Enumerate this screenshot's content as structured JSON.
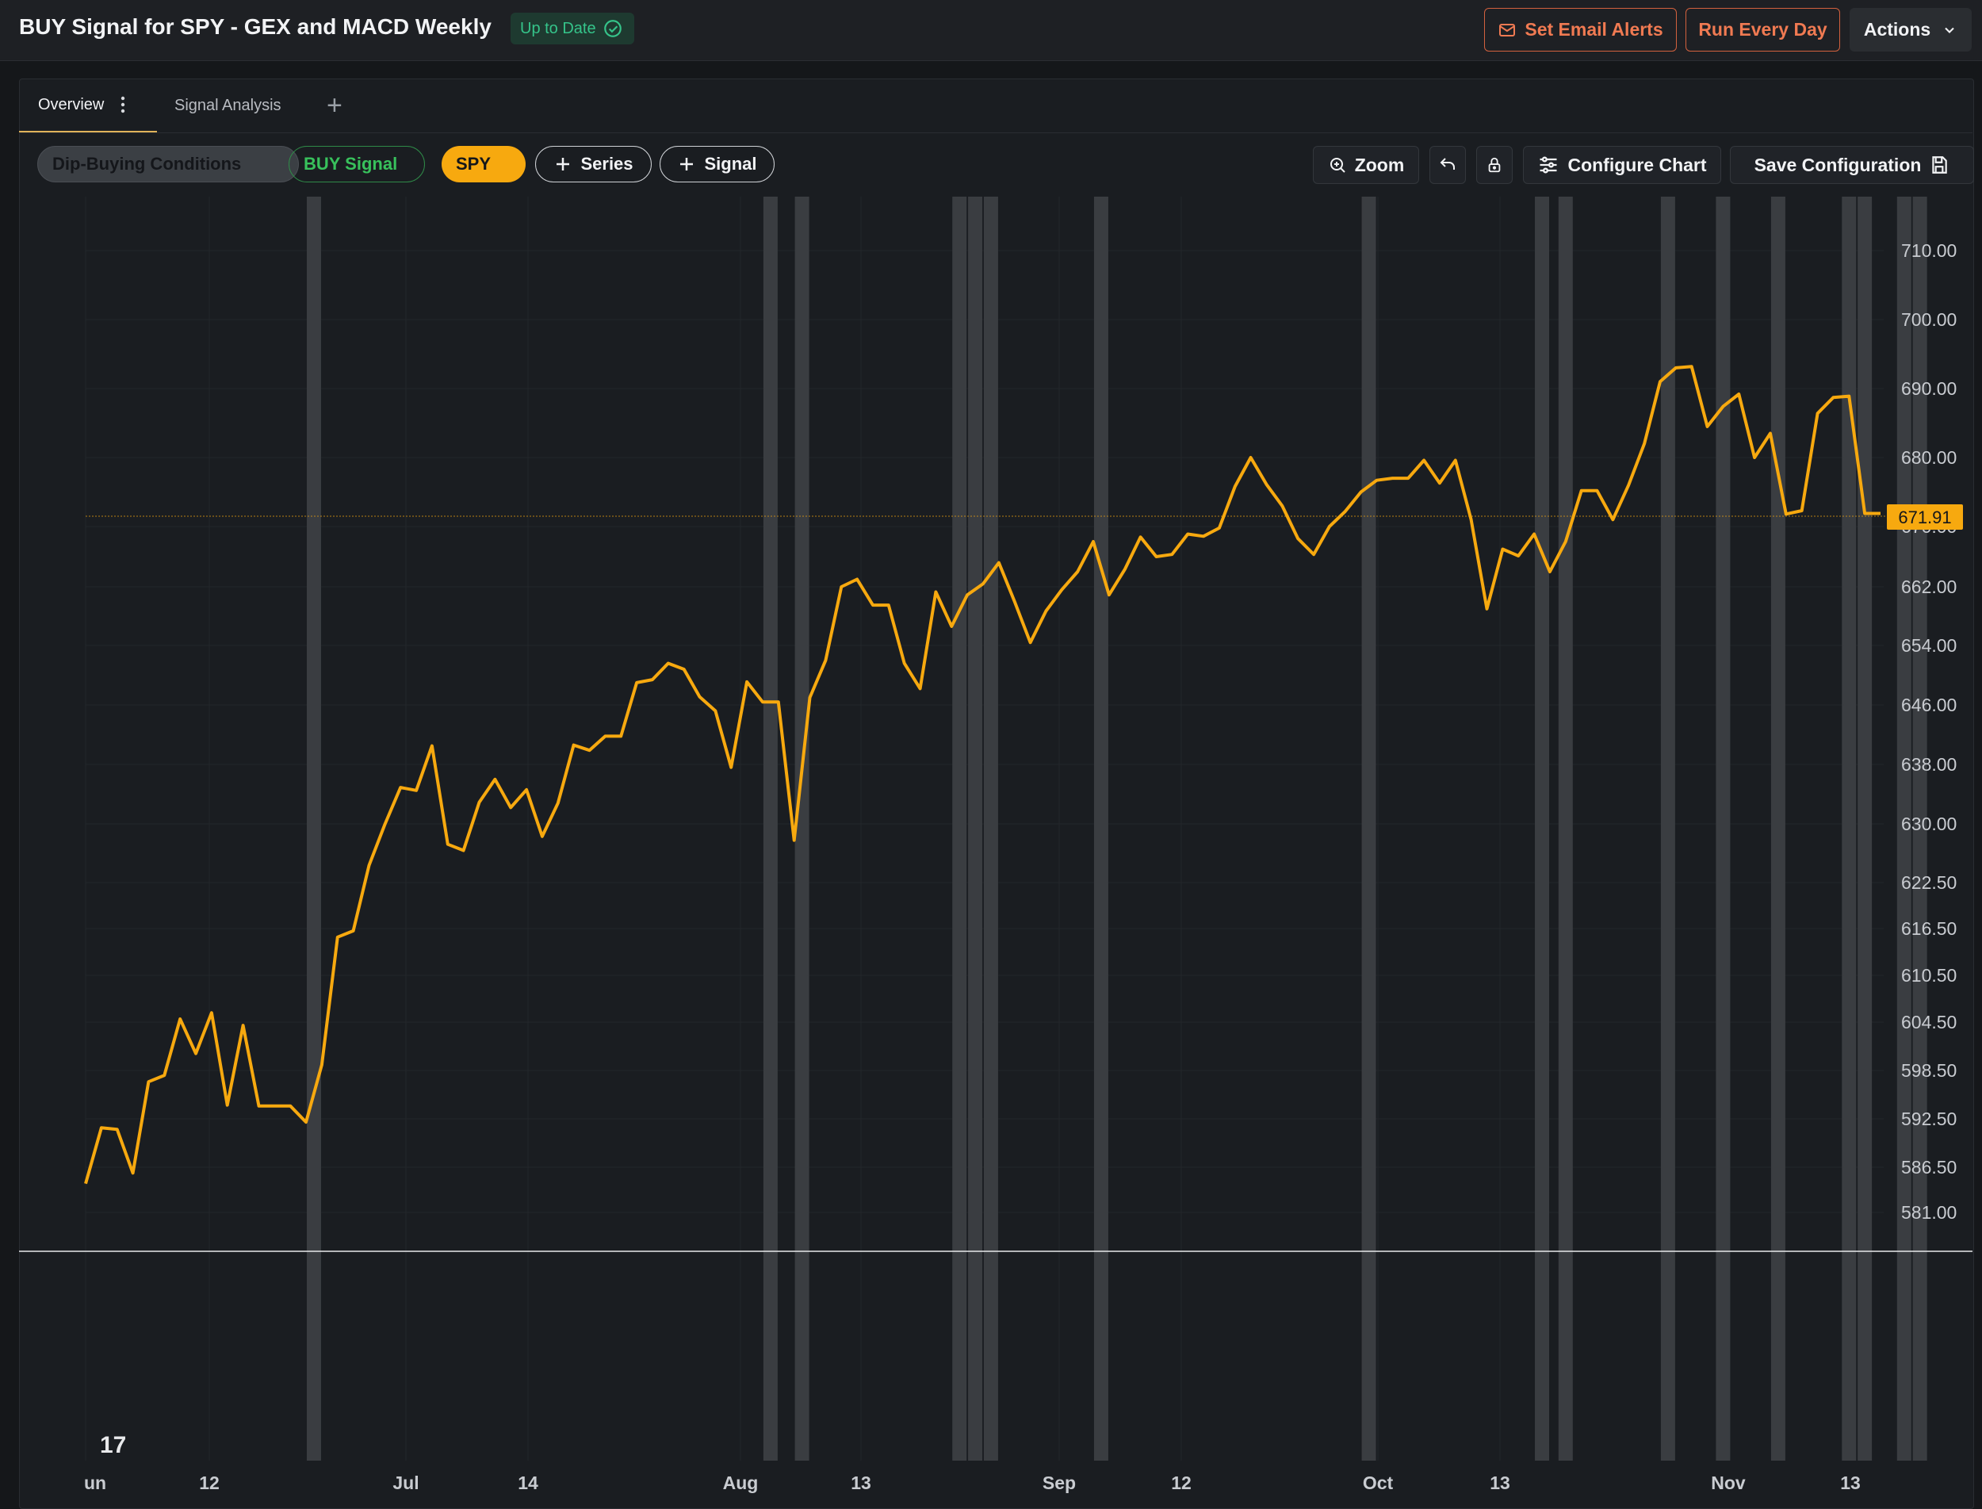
{
  "header": {
    "title": "BUY Signal for SPY - GEX and MACD Weekly",
    "status": "Up to Date",
    "buttons": {
      "email": "Set Email Alerts",
      "run": "Run Every Day",
      "actions": "Actions"
    }
  },
  "tabs": [
    {
      "label": "Overview",
      "active": true
    },
    {
      "label": "Signal Analysis",
      "active": false
    }
  ],
  "toolbar": {
    "pills": {
      "dip": "Dip-Buying Conditions",
      "buy": "BUY Signal",
      "spy": "SPY",
      "series": "Series",
      "signal": "Signal"
    },
    "zoom": "Zoom",
    "configure": "Configure Chart",
    "save": "Save Configuration"
  },
  "colors": {
    "line": "#f7a90f",
    "signal_band": "#3a3d41",
    "buy": "#38c15c",
    "accent": "#f07a52"
  },
  "chart_data": {
    "type": "line",
    "series": [
      {
        "name": "SPY",
        "y": [
          584.5,
          591.4,
          591.2,
          585.8,
          597.1,
          597.9,
          604.9,
          600.6,
          605.7,
          594.2,
          604.1,
          594.1,
          594.1,
          594.1,
          592.1,
          599.2,
          615.4,
          616.2,
          624.7,
          629.9,
          634.9,
          634.5,
          640.5,
          627.4,
          626.6,
          632.9,
          636.0,
          632.2,
          634.6,
          628.4,
          632.8,
          640.6,
          639.9,
          641.8,
          641.8,
          649.0,
          649.4,
          651.6,
          650.8,
          647.1,
          645.2,
          637.6,
          649.1,
          646.4,
          646.4,
          627.9,
          647.0,
          652.0,
          662.0,
          663.0,
          659.5,
          659.5,
          651.6,
          648.2,
          661.3,
          656.6,
          660.9,
          662.4,
          665.2,
          660.0,
          654.4,
          658.7,
          661.6,
          664.0,
          668.0,
          660.9,
          664.3,
          668.6,
          666.0,
          666.3,
          669.0,
          668.7,
          669.8,
          675.8,
          680.0,
          676.1,
          673.0,
          668.4,
          666.3,
          670.0,
          672.2,
          675.0,
          676.7,
          677.0,
          677.0,
          679.6,
          676.3,
          679.6,
          671.0,
          659.0,
          667.0,
          666.1,
          669.0,
          664.0,
          668.0,
          675.2,
          675.2,
          671.0,
          676.0,
          682.0,
          691.0,
          693.0,
          693.2,
          684.5,
          687.4,
          689.2,
          680.0,
          683.5,
          671.8,
          672.3,
          686.4,
          688.7,
          688.9,
          671.9,
          671.9
        ],
        "last_value": "671.91"
      }
    ],
    "x_tick_labels": [
      "un",
      "12",
      "Jul",
      "14",
      "Aug",
      "13",
      "Sep",
      "12",
      "Oct",
      "13",
      "Nov",
      "13"
    ],
    "y_tick_labels": [
      "710.00",
      "700.00",
      "690.00",
      "680.00",
      "670.00",
      "662.00",
      "654.00",
      "646.00",
      "638.00",
      "630.00",
      "622.50",
      "616.50",
      "610.50",
      "604.50",
      "598.50",
      "592.50",
      "586.50",
      "581.00"
    ],
    "signal_bands": [
      14.5,
      43.5,
      45.5,
      55.5,
      56.5,
      57.5,
      64.5,
      81.5,
      92.5,
      94,
      100.5,
      104,
      107.5,
      112,
      113,
      115.5,
      116.5
    ],
    "grid": true,
    "watermark": "17"
  }
}
